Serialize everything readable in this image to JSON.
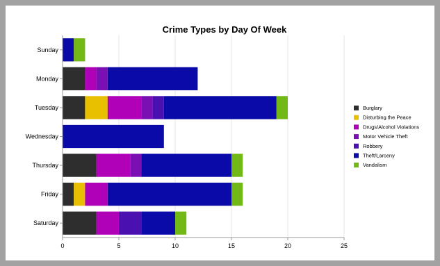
{
  "chart_data": {
    "type": "bar",
    "orientation": "horizontal",
    "stacked": true,
    "title": "Crime Types by Day Of Week",
    "xlabel": "",
    "ylabel": "",
    "xlim": [
      0,
      25
    ],
    "x_ticks": [
      0,
      5,
      10,
      15,
      20,
      25
    ],
    "grid": "vertical",
    "legend_position": "right",
    "categories": [
      "Sunday",
      "Monday",
      "Tuesday",
      "Wednesday",
      "Thursday",
      "Friday",
      "Saturday"
    ],
    "series": [
      {
        "name": "Burglary",
        "color": "#2e2e2e",
        "values": [
          0,
          2,
          2,
          0,
          3,
          1,
          3
        ]
      },
      {
        "name": "Disturbing the Peace",
        "color": "#e8c000",
        "values": [
          0,
          0,
          2,
          0,
          0,
          1,
          0
        ]
      },
      {
        "name": "Drugs/Alcohol Violations",
        "color": "#b000b8",
        "values": [
          0,
          1,
          3,
          0,
          3,
          2,
          2
        ]
      },
      {
        "name": "Motor Vehicle Theft",
        "color": "#7a10b4",
        "values": [
          0,
          1,
          1,
          0,
          1,
          0,
          0
        ]
      },
      {
        "name": "Robbery",
        "color": "#4a10b0",
        "values": [
          0,
          0,
          1,
          0,
          0,
          0,
          2
        ]
      },
      {
        "name": "Theft/Larceny",
        "color": "#0a0aa8",
        "values": [
          1,
          8,
          10,
          9,
          8,
          11,
          3
        ]
      },
      {
        "name": "Vandalism",
        "color": "#72b816",
        "values": [
          1,
          0,
          1,
          0,
          1,
          1,
          1
        ]
      }
    ]
  }
}
